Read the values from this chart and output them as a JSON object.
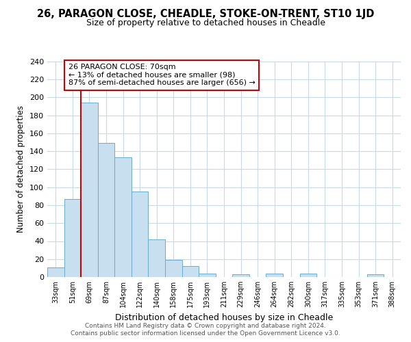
{
  "title": "26, PARAGON CLOSE, CHEADLE, STOKE-ON-TRENT, ST10 1JD",
  "subtitle": "Size of property relative to detached houses in Cheadle",
  "xlabel": "Distribution of detached houses by size in Cheadle",
  "ylabel": "Number of detached properties",
  "bar_labels": [
    "33sqm",
    "51sqm",
    "69sqm",
    "87sqm",
    "104sqm",
    "122sqm",
    "140sqm",
    "158sqm",
    "175sqm",
    "193sqm",
    "211sqm",
    "229sqm",
    "246sqm",
    "264sqm",
    "282sqm",
    "300sqm",
    "317sqm",
    "335sqm",
    "353sqm",
    "371sqm",
    "388sqm"
  ],
  "bar_heights": [
    11,
    87,
    194,
    149,
    133,
    95,
    42,
    19,
    12,
    4,
    0,
    3,
    0,
    4,
    0,
    4,
    0,
    0,
    0,
    3,
    0
  ],
  "bar_color": "#c8dff0",
  "bar_edge_color": "#6aabcf",
  "highlight_bar_index": 2,
  "highlight_line_color": "#cc0000",
  "annotation_title": "26 PARAGON CLOSE: 70sqm",
  "annotation_line1": "← 13% of detached houses are smaller (98)",
  "annotation_line2": "87% of semi-detached houses are larger (656) →",
  "annotation_box_color": "#ffffff",
  "annotation_box_edge": "#cc0000",
  "ylim": [
    0,
    240
  ],
  "yticks": [
    0,
    20,
    40,
    60,
    80,
    100,
    120,
    140,
    160,
    180,
    200,
    220,
    240
  ],
  "footer1": "Contains HM Land Registry data © Crown copyright and database right 2024.",
  "footer2": "Contains public sector information licensed under the Open Government Licence v3.0.",
  "bg_color": "#ffffff",
  "grid_color": "#c8d8e8",
  "title_fontsize": 10.5,
  "subtitle_fontsize": 9,
  "ylabel_fontsize": 8.5,
  "xlabel_fontsize": 9
}
